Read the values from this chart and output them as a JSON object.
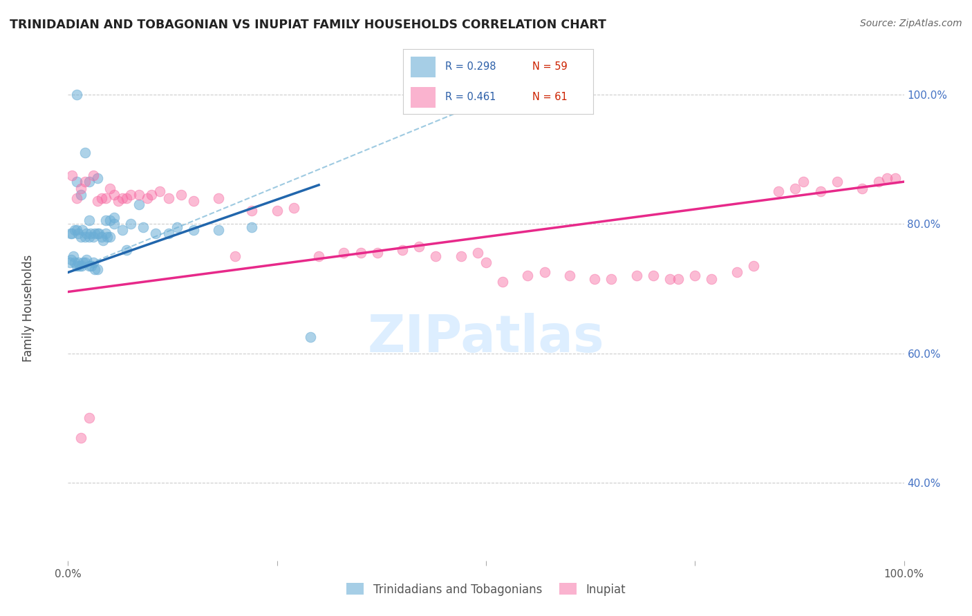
{
  "title": "TRINIDADIAN AND TOBAGONIAN VS INUPIAT FAMILY HOUSEHOLDS CORRELATION CHART",
  "source": "Source: ZipAtlas.com",
  "ylabel": "Family Households",
  "legend_r1": "R = 0.298",
  "legend_n1": "N = 59",
  "legend_r2": "R = 0.461",
  "legend_n2": "N = 61",
  "legend_label1": "Trinidadians and Tobagonians",
  "legend_label2": "Inupiat",
  "blue_color": "#92c5de",
  "pink_color": "#f4a582",
  "blue_scatter_color": "#6baed6",
  "pink_scatter_color": "#f768a1",
  "blue_line_color": "#2166ac",
  "pink_line_color": "#e7298a",
  "dashed_line_color": "#9ecae1",
  "watermark_color": "#ddeeff",
  "grid_color": "#cccccc",
  "background_color": "#ffffff",
  "title_color": "#222222",
  "right_axis_color": "#4472c4",
  "blue_scatter_x": [
    1.0,
    1.0,
    2.0,
    1.5,
    2.5,
    3.5,
    2.5,
    4.5,
    5.0,
    5.5,
    0.3,
    0.5,
    0.8,
    1.0,
    1.2,
    1.5,
    1.7,
    2.0,
    2.2,
    2.5,
    2.7,
    3.0,
    3.2,
    3.5,
    3.7,
    4.0,
    4.2,
    4.5,
    4.7,
    5.0,
    0.2,
    0.4,
    0.6,
    0.8,
    1.0,
    1.2,
    1.4,
    1.6,
    1.8,
    2.0,
    2.2,
    2.5,
    2.8,
    3.0,
    3.2,
    3.5,
    5.5,
    6.5,
    7.5,
    9.0,
    10.5,
    13.0,
    15.0,
    18.0,
    22.0,
    7.0,
    8.5,
    12.0,
    29.0
  ],
  "blue_scatter_y": [
    100.0,
    86.5,
    91.0,
    84.5,
    86.5,
    87.0,
    80.5,
    80.5,
    80.5,
    81.0,
    78.5,
    78.5,
    79.0,
    79.0,
    78.5,
    78.0,
    79.0,
    78.0,
    78.5,
    78.0,
    78.5,
    78.0,
    78.5,
    78.5,
    78.5,
    78.0,
    77.5,
    78.5,
    78.0,
    78.0,
    74.0,
    74.5,
    75.0,
    74.0,
    73.5,
    74.0,
    73.5,
    73.5,
    74.0,
    74.0,
    74.5,
    73.5,
    73.5,
    74.0,
    73.0,
    73.0,
    80.0,
    79.0,
    80.0,
    79.5,
    78.5,
    79.5,
    79.0,
    79.0,
    79.5,
    76.0,
    83.0,
    78.5,
    62.5
  ],
  "pink_scatter_x": [
    0.5,
    1.0,
    1.5,
    2.0,
    3.0,
    3.5,
    4.0,
    4.5,
    5.0,
    5.5,
    6.0,
    6.5,
    7.0,
    7.5,
    8.5,
    9.5,
    10.0,
    11.0,
    12.0,
    13.5,
    15.0,
    18.0,
    20.0,
    22.0,
    25.0,
    27.0,
    30.0,
    33.0,
    35.0,
    37.0,
    40.0,
    42.0,
    44.0,
    47.0,
    49.0,
    50.0,
    52.0,
    55.0,
    57.0,
    60.0,
    63.0,
    65.0,
    68.0,
    70.0,
    72.0,
    73.0,
    75.0,
    77.0,
    80.0,
    82.0,
    85.0,
    87.0,
    88.0,
    90.0,
    92.0,
    95.0,
    97.0,
    98.0,
    99.0,
    2.5,
    1.5
  ],
  "pink_scatter_y": [
    87.5,
    84.0,
    85.5,
    86.5,
    87.5,
    83.5,
    84.0,
    84.0,
    85.5,
    84.5,
    83.5,
    84.0,
    84.0,
    84.5,
    84.5,
    84.0,
    84.5,
    85.0,
    84.0,
    84.5,
    83.5,
    84.0,
    75.0,
    82.0,
    82.0,
    82.5,
    75.0,
    75.5,
    75.5,
    75.5,
    76.0,
    76.5,
    75.0,
    75.0,
    75.5,
    74.0,
    71.0,
    72.0,
    72.5,
    72.0,
    71.5,
    71.5,
    72.0,
    72.0,
    71.5,
    71.5,
    72.0,
    71.5,
    72.5,
    73.5,
    85.0,
    85.5,
    86.5,
    85.0,
    86.5,
    85.5,
    86.5,
    87.0,
    87.0,
    50.0,
    47.0
  ],
  "xlim": [
    0,
    100
  ],
  "ylim": [
    28,
    106
  ],
  "y_ticks": [
    40,
    60,
    80,
    100
  ],
  "y_tick_labels": [
    "40.0%",
    "60.0%",
    "80.0%",
    "100.0%"
  ],
  "blue_line_x": [
    0,
    30
  ],
  "blue_line_y": [
    72.5,
    86.0
  ],
  "pink_line_x": [
    0,
    100
  ],
  "pink_line_y": [
    69.5,
    86.5
  ],
  "dashed_line_x": [
    0,
    50
  ],
  "dashed_line_y": [
    72.5,
    99.0
  ]
}
